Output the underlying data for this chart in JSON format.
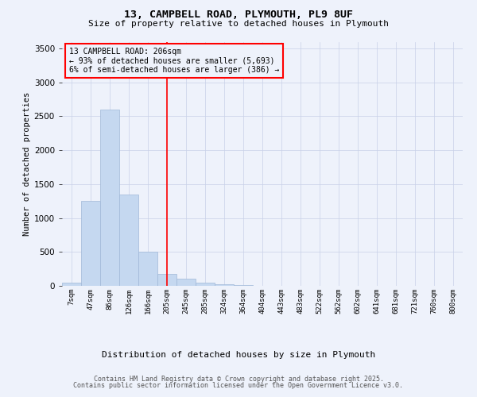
{
  "title_line1": "13, CAMPBELL ROAD, PLYMOUTH, PL9 8UF",
  "title_line2": "Size of property relative to detached houses in Plymouth",
  "xlabel": "Distribution of detached houses by size in Plymouth",
  "ylabel": "Number of detached properties",
  "bar_labels": [
    "7sqm",
    "47sqm",
    "86sqm",
    "126sqm",
    "166sqm",
    "205sqm",
    "245sqm",
    "285sqm",
    "324sqm",
    "364sqm",
    "404sqm",
    "443sqm",
    "483sqm",
    "522sqm",
    "562sqm",
    "602sqm",
    "641sqm",
    "681sqm",
    "721sqm",
    "760sqm",
    "800sqm"
  ],
  "bar_values": [
    50,
    1250,
    2600,
    1350,
    500,
    180,
    100,
    50,
    20,
    10,
    5,
    3,
    2,
    1,
    1,
    0,
    0,
    0,
    0,
    0,
    0
  ],
  "bar_color": "#c5d8f0",
  "bar_edge_color": "#a0b8d8",
  "ylim": [
    0,
    3600
  ],
  "yticks": [
    0,
    500,
    1000,
    1500,
    2000,
    2500,
    3000,
    3500
  ],
  "red_line_index": 5,
  "annotation_text": "13 CAMPBELL ROAD: 206sqm\n← 93% of detached houses are smaller (5,693)\n6% of semi-detached houses are larger (386) →",
  "footer_line1": "Contains HM Land Registry data © Crown copyright and database right 2025.",
  "footer_line2": "Contains public sector information licensed under the Open Government Licence v3.0.",
  "bg_color": "#eef2fb",
  "grid_color": "#c8d0e8"
}
